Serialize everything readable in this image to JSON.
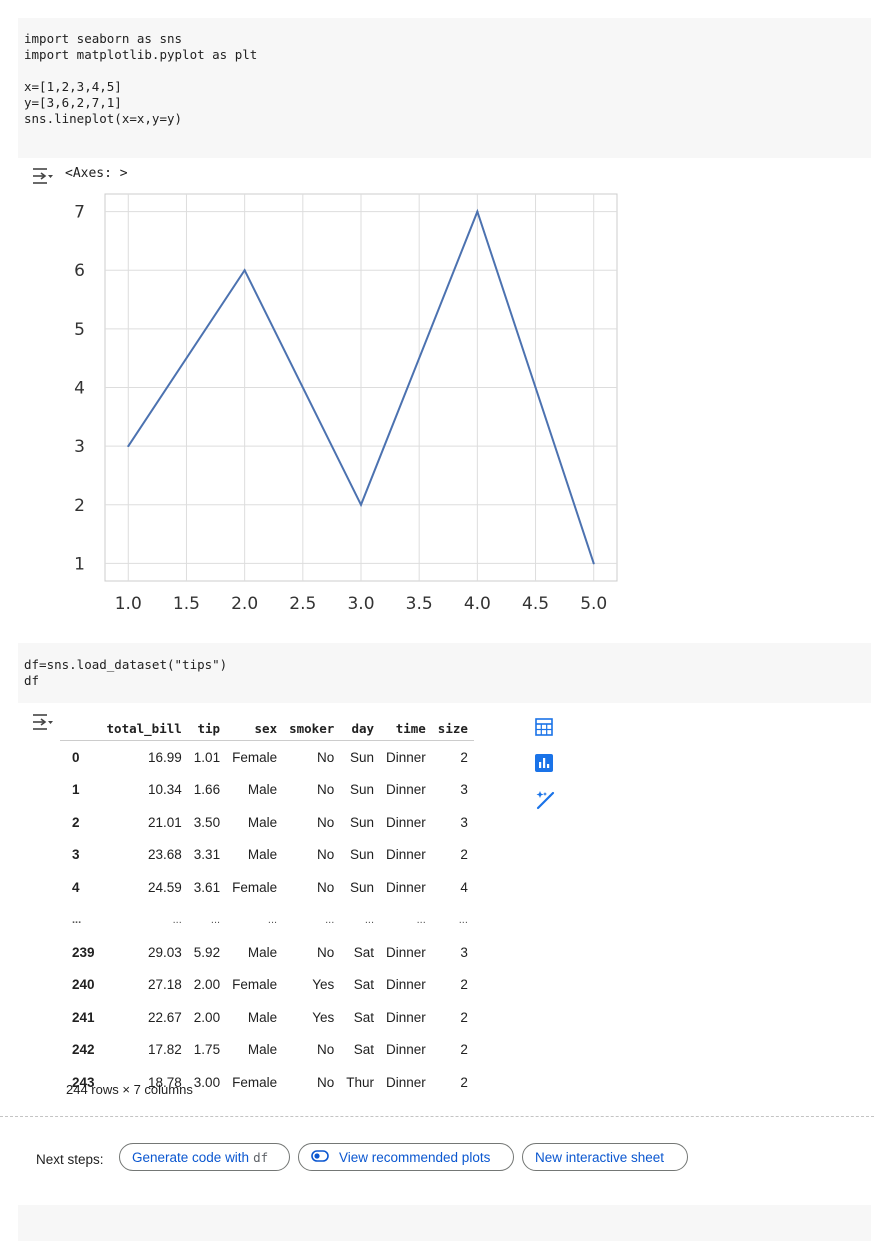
{
  "cells": [
    {
      "code_lines": [
        "import seaborn as sns",
        "import matplotlib.pyplot as plt",
        "",
        "x=[1,2,3,4,5]",
        "y=[3,6,2,7,1]",
        "sns.lineplot(x=x,y=y)"
      ],
      "output_text": "<Axes: >"
    },
    {
      "code_lines": [
        "df=sns.load_dataset(\"tips\")",
        "df"
      ]
    }
  ],
  "chart_data": {
    "type": "line",
    "x": [
      1,
      2,
      3,
      4,
      5
    ],
    "series": [
      {
        "values": [
          3,
          6,
          2,
          7,
          1
        ]
      }
    ],
    "xlim": [
      0.8,
      5.2
    ],
    "ylim": [
      0.7,
      7.3
    ],
    "xticks": [
      "1.0",
      "1.5",
      "2.0",
      "2.5",
      "3.0",
      "3.5",
      "4.0",
      "4.5",
      "5.0"
    ],
    "yticks": [
      "1",
      "2",
      "3",
      "4",
      "5",
      "6",
      "7"
    ],
    "grid": true,
    "line_color": "#4c72b0"
  },
  "dataframe": {
    "columns": [
      "total_bill",
      "tip",
      "sex",
      "smoker",
      "day",
      "time",
      "size"
    ],
    "rows": [
      {
        "index": "0",
        "values": [
          "16.99",
          "1.01",
          "Female",
          "No",
          "Sun",
          "Dinner",
          "2"
        ]
      },
      {
        "index": "1",
        "values": [
          "10.34",
          "1.66",
          "Male",
          "No",
          "Sun",
          "Dinner",
          "3"
        ]
      },
      {
        "index": "2",
        "values": [
          "21.01",
          "3.50",
          "Male",
          "No",
          "Sun",
          "Dinner",
          "3"
        ]
      },
      {
        "index": "3",
        "values": [
          "23.68",
          "3.31",
          "Male",
          "No",
          "Sun",
          "Dinner",
          "2"
        ]
      },
      {
        "index": "4",
        "values": [
          "24.59",
          "3.61",
          "Female",
          "No",
          "Sun",
          "Dinner",
          "4"
        ]
      },
      {
        "index": "...",
        "values": [
          "...",
          "...",
          "...",
          "...",
          "...",
          "...",
          "..."
        ]
      },
      {
        "index": "239",
        "values": [
          "29.03",
          "5.92",
          "Male",
          "No",
          "Sat",
          "Dinner",
          "3"
        ]
      },
      {
        "index": "240",
        "values": [
          "27.18",
          "2.00",
          "Female",
          "Yes",
          "Sat",
          "Dinner",
          "2"
        ]
      },
      {
        "index": "241",
        "values": [
          "22.67",
          "2.00",
          "Male",
          "Yes",
          "Sat",
          "Dinner",
          "2"
        ]
      },
      {
        "index": "242",
        "values": [
          "17.82",
          "1.75",
          "Male",
          "No",
          "Sat",
          "Dinner",
          "2"
        ]
      },
      {
        "index": "243",
        "values": [
          "18.78",
          "3.00",
          "Female",
          "No",
          "Thur",
          "Dinner",
          "2"
        ]
      }
    ],
    "shape_text": "244 rows × 7 columns"
  },
  "next_steps": {
    "label": "Next steps:",
    "generate_label": "Generate code with",
    "generate_var": "df",
    "plots_label": "View recommended plots",
    "sheet_label": "New interactive sheet"
  },
  "colors": {
    "accent": "#0b57d0",
    "icon_blue": "#1a73e8",
    "code_bg": "#f7f7f7"
  }
}
